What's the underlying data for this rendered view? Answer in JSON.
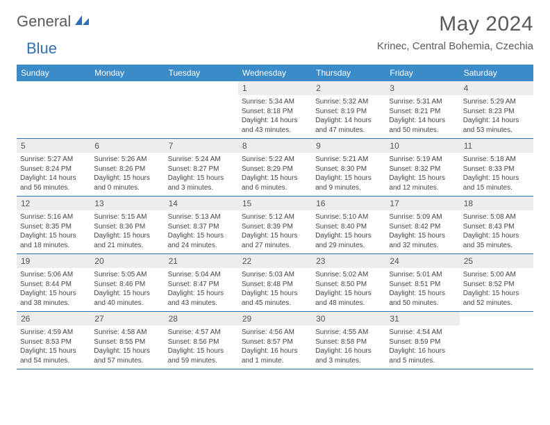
{
  "brand": {
    "part1": "General",
    "part2": "Blue"
  },
  "title": "May 2024",
  "location": "Krinec, Central Bohemia, Czechia",
  "colors": {
    "header_bg": "#3b8bc9",
    "header_text": "#ffffff",
    "divider": "#2e6fb5",
    "daynum_bg": "#ededed",
    "body_text": "#444444",
    "brand_gray": "#5a5a5a",
    "brand_blue": "#2e6fb5",
    "page_bg": "#ffffff"
  },
  "typography": {
    "title_fontsize": 30,
    "location_fontsize": 15,
    "weekday_fontsize": 12,
    "daynum_fontsize": 12,
    "body_fontsize": 10
  },
  "weekdays": [
    "Sunday",
    "Monday",
    "Tuesday",
    "Wednesday",
    "Thursday",
    "Friday",
    "Saturday"
  ],
  "weeks": [
    [
      {
        "n": "",
        "lines": []
      },
      {
        "n": "",
        "lines": []
      },
      {
        "n": "",
        "lines": []
      },
      {
        "n": "1",
        "lines": [
          "Sunrise: 5:34 AM",
          "Sunset: 8:18 PM",
          "Daylight: 14 hours",
          "and 43 minutes."
        ]
      },
      {
        "n": "2",
        "lines": [
          "Sunrise: 5:32 AM",
          "Sunset: 8:19 PM",
          "Daylight: 14 hours",
          "and 47 minutes."
        ]
      },
      {
        "n": "3",
        "lines": [
          "Sunrise: 5:31 AM",
          "Sunset: 8:21 PM",
          "Daylight: 14 hours",
          "and 50 minutes."
        ]
      },
      {
        "n": "4",
        "lines": [
          "Sunrise: 5:29 AM",
          "Sunset: 8:23 PM",
          "Daylight: 14 hours",
          "and 53 minutes."
        ]
      }
    ],
    [
      {
        "n": "5",
        "lines": [
          "Sunrise: 5:27 AM",
          "Sunset: 8:24 PM",
          "Daylight: 14 hours",
          "and 56 minutes."
        ]
      },
      {
        "n": "6",
        "lines": [
          "Sunrise: 5:26 AM",
          "Sunset: 8:26 PM",
          "Daylight: 15 hours",
          "and 0 minutes."
        ]
      },
      {
        "n": "7",
        "lines": [
          "Sunrise: 5:24 AM",
          "Sunset: 8:27 PM",
          "Daylight: 15 hours",
          "and 3 minutes."
        ]
      },
      {
        "n": "8",
        "lines": [
          "Sunrise: 5:22 AM",
          "Sunset: 8:29 PM",
          "Daylight: 15 hours",
          "and 6 minutes."
        ]
      },
      {
        "n": "9",
        "lines": [
          "Sunrise: 5:21 AM",
          "Sunset: 8:30 PM",
          "Daylight: 15 hours",
          "and 9 minutes."
        ]
      },
      {
        "n": "10",
        "lines": [
          "Sunrise: 5:19 AM",
          "Sunset: 8:32 PM",
          "Daylight: 15 hours",
          "and 12 minutes."
        ]
      },
      {
        "n": "11",
        "lines": [
          "Sunrise: 5:18 AM",
          "Sunset: 8:33 PM",
          "Daylight: 15 hours",
          "and 15 minutes."
        ]
      }
    ],
    [
      {
        "n": "12",
        "lines": [
          "Sunrise: 5:16 AM",
          "Sunset: 8:35 PM",
          "Daylight: 15 hours",
          "and 18 minutes."
        ]
      },
      {
        "n": "13",
        "lines": [
          "Sunrise: 5:15 AM",
          "Sunset: 8:36 PM",
          "Daylight: 15 hours",
          "and 21 minutes."
        ]
      },
      {
        "n": "14",
        "lines": [
          "Sunrise: 5:13 AM",
          "Sunset: 8:37 PM",
          "Daylight: 15 hours",
          "and 24 minutes."
        ]
      },
      {
        "n": "15",
        "lines": [
          "Sunrise: 5:12 AM",
          "Sunset: 8:39 PM",
          "Daylight: 15 hours",
          "and 27 minutes."
        ]
      },
      {
        "n": "16",
        "lines": [
          "Sunrise: 5:10 AM",
          "Sunset: 8:40 PM",
          "Daylight: 15 hours",
          "and 29 minutes."
        ]
      },
      {
        "n": "17",
        "lines": [
          "Sunrise: 5:09 AM",
          "Sunset: 8:42 PM",
          "Daylight: 15 hours",
          "and 32 minutes."
        ]
      },
      {
        "n": "18",
        "lines": [
          "Sunrise: 5:08 AM",
          "Sunset: 8:43 PM",
          "Daylight: 15 hours",
          "and 35 minutes."
        ]
      }
    ],
    [
      {
        "n": "19",
        "lines": [
          "Sunrise: 5:06 AM",
          "Sunset: 8:44 PM",
          "Daylight: 15 hours",
          "and 38 minutes."
        ]
      },
      {
        "n": "20",
        "lines": [
          "Sunrise: 5:05 AM",
          "Sunset: 8:46 PM",
          "Daylight: 15 hours",
          "and 40 minutes."
        ]
      },
      {
        "n": "21",
        "lines": [
          "Sunrise: 5:04 AM",
          "Sunset: 8:47 PM",
          "Daylight: 15 hours",
          "and 43 minutes."
        ]
      },
      {
        "n": "22",
        "lines": [
          "Sunrise: 5:03 AM",
          "Sunset: 8:48 PM",
          "Daylight: 15 hours",
          "and 45 minutes."
        ]
      },
      {
        "n": "23",
        "lines": [
          "Sunrise: 5:02 AM",
          "Sunset: 8:50 PM",
          "Daylight: 15 hours",
          "and 48 minutes."
        ]
      },
      {
        "n": "24",
        "lines": [
          "Sunrise: 5:01 AM",
          "Sunset: 8:51 PM",
          "Daylight: 15 hours",
          "and 50 minutes."
        ]
      },
      {
        "n": "25",
        "lines": [
          "Sunrise: 5:00 AM",
          "Sunset: 8:52 PM",
          "Daylight: 15 hours",
          "and 52 minutes."
        ]
      }
    ],
    [
      {
        "n": "26",
        "lines": [
          "Sunrise: 4:59 AM",
          "Sunset: 8:53 PM",
          "Daylight: 15 hours",
          "and 54 minutes."
        ]
      },
      {
        "n": "27",
        "lines": [
          "Sunrise: 4:58 AM",
          "Sunset: 8:55 PM",
          "Daylight: 15 hours",
          "and 57 minutes."
        ]
      },
      {
        "n": "28",
        "lines": [
          "Sunrise: 4:57 AM",
          "Sunset: 8:56 PM",
          "Daylight: 15 hours",
          "and 59 minutes."
        ]
      },
      {
        "n": "29",
        "lines": [
          "Sunrise: 4:56 AM",
          "Sunset: 8:57 PM",
          "Daylight: 16 hours",
          "and 1 minute."
        ]
      },
      {
        "n": "30",
        "lines": [
          "Sunrise: 4:55 AM",
          "Sunset: 8:58 PM",
          "Daylight: 16 hours",
          "and 3 minutes."
        ]
      },
      {
        "n": "31",
        "lines": [
          "Sunrise: 4:54 AM",
          "Sunset: 8:59 PM",
          "Daylight: 16 hours",
          "and 5 minutes."
        ]
      },
      {
        "n": "",
        "lines": []
      }
    ]
  ]
}
